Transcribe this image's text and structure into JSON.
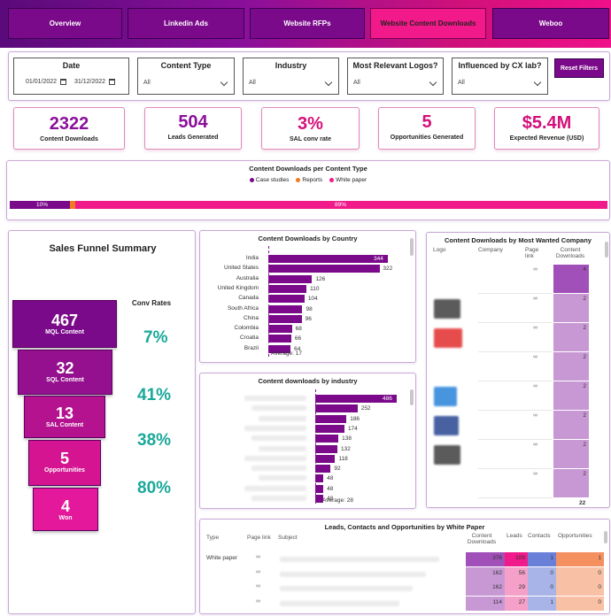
{
  "tabs": [
    {
      "label": "Overview",
      "active": false
    },
    {
      "label": "Linkedin Ads",
      "active": false
    },
    {
      "label": "Website RFPs",
      "active": false
    },
    {
      "label": "Website Content Downloads",
      "active": true
    },
    {
      "label": "Weboo",
      "active": false
    }
  ],
  "filters": {
    "date_label": "Date",
    "date_from": "01/01/2022",
    "date_to": "31/12/2022",
    "content_type_label": "Content Type",
    "content_type_value": "All",
    "industry_label": "Industry",
    "industry_value": "All",
    "logos_label": "Most Relevant Logos?",
    "logos_value": "All",
    "cx_label": "Influenced by CX lab?",
    "cx_value": "All",
    "reset_label": "Reset Filters"
  },
  "kpis": [
    {
      "value": "2322",
      "label": "Content Downloads"
    },
    {
      "value": "504",
      "label": "Leads Generated"
    },
    {
      "value": "3%",
      "label": "SAL conv rate"
    },
    {
      "value": "5",
      "label": "Opportunities Generated"
    },
    {
      "value": "$5.4M",
      "label": "Expected Revenue (USD)"
    }
  ],
  "content_type_chart": {
    "title": "Content Downloads per Content Type",
    "legend": [
      "Case studies",
      "Reports",
      "White paper"
    ],
    "colors": [
      "#7a0a8a",
      "#f07a20",
      "#f01a8a"
    ],
    "label_a": "10%",
    "label_c": "89%"
  },
  "chart_data": [
    {
      "type": "bar",
      "title": "Content Downloads per Content Type",
      "categories": [
        "Case studies",
        "Reports",
        "White paper"
      ],
      "values": [
        10,
        1,
        89
      ],
      "unit": "%"
    },
    {
      "type": "bar",
      "title": "Content Downloads by Country",
      "categories": [
        "India",
        "United States",
        "Australia",
        "United Kingdom",
        "Canada",
        "South Africa",
        "China",
        "Colombia",
        "Croatia",
        "Brazil"
      ],
      "values": [
        344,
        322,
        126,
        110,
        104,
        98,
        96,
        68,
        66,
        64
      ],
      "average_label": "Average: 17",
      "xlim": [
        0,
        344
      ]
    },
    {
      "type": "bar",
      "title": "Content downloads by industry",
      "values": [
        486,
        252,
        186,
        174,
        138,
        132,
        118,
        92,
        48,
        48,
        48
      ],
      "average_label": "Average: 28",
      "xlim": [
        0,
        486
      ]
    }
  ],
  "funnel": {
    "title": "Sales Funnel Summary",
    "conv_title": "Conv Rates",
    "stages": [
      {
        "value": "467",
        "label": "MQL Content"
      },
      {
        "value": "32",
        "label": "SQL Content"
      },
      {
        "value": "13",
        "label": "SAL Content"
      },
      {
        "value": "5",
        "label": "Opportunities"
      },
      {
        "value": "4",
        "label": "Won"
      }
    ],
    "conv_rates": [
      "7%",
      "41%",
      "38%",
      "80%"
    ]
  },
  "company_table": {
    "title": "Content Downloads by Most Wanted Company",
    "headers": [
      "Logo",
      "Company",
      "Page link",
      "Content Downloads"
    ],
    "values": [
      "4",
      "2",
      "2",
      "2",
      "2",
      "2",
      "2",
      "2"
    ],
    "total": "22"
  },
  "white_paper_table": {
    "title": "Leads, Contacts and Opportunities by White Paper",
    "headers": [
      "Type",
      "Page link",
      "Subject",
      "Content Downloads",
      "Leads",
      "Contacts",
      "Opportunities"
    ],
    "type_value": "White paper",
    "rows": [
      {
        "downloads": "376",
        "leads": "109",
        "contacts": "1",
        "opps": "1"
      },
      {
        "downloads": "162",
        "leads": "56",
        "contacts": "0",
        "opps": "0"
      },
      {
        "downloads": "162",
        "leads": "29",
        "contacts": "0",
        "opps": "0"
      },
      {
        "downloads": "114",
        "leads": "27",
        "contacts": "1",
        "opps": "0"
      }
    ]
  }
}
